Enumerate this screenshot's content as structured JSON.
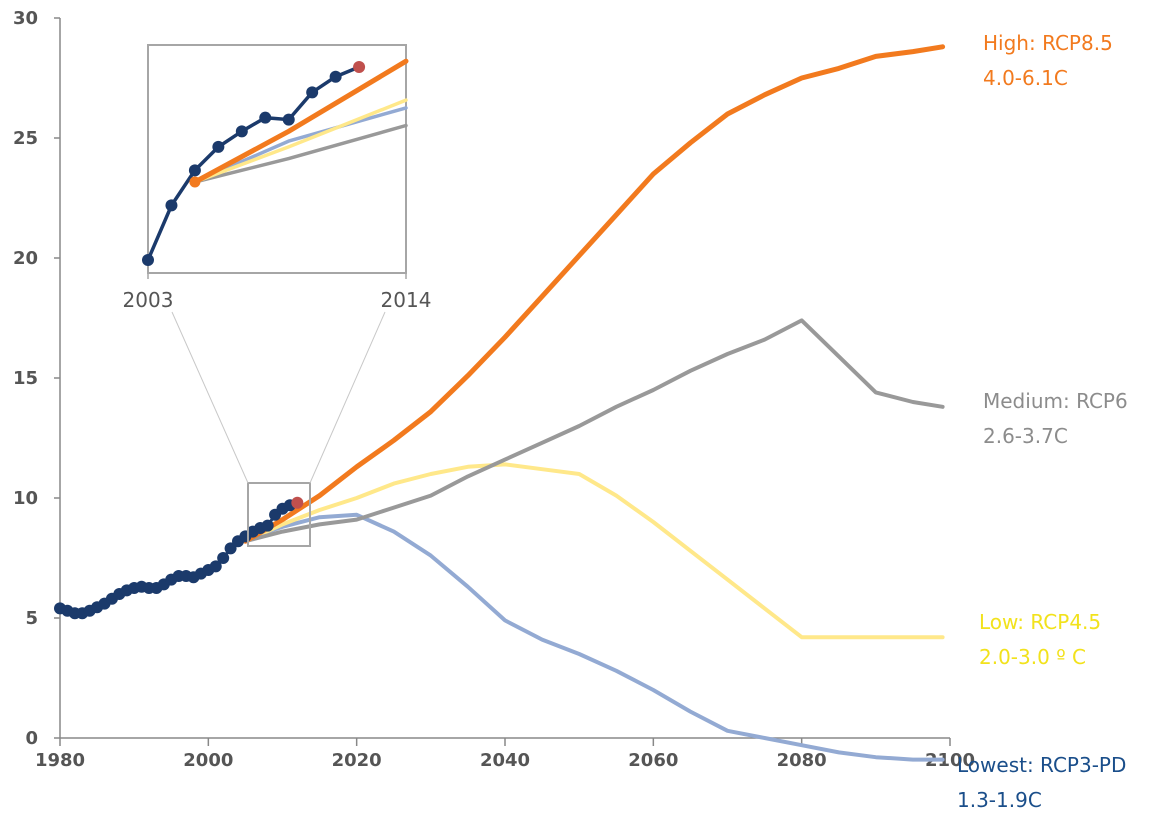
{
  "chart_data": {
    "type": "line",
    "title": "",
    "xlabel": "",
    "ylabel": "",
    "xlim": [
      1980,
      2100
    ],
    "ylim": [
      0,
      30
    ],
    "x_ticks": [
      "1980",
      "2000",
      "2020",
      "2040",
      "2060",
      "2080",
      "2100"
    ],
    "y_ticks": [
      "0",
      "5",
      "10",
      "15",
      "20",
      "25",
      "30"
    ],
    "grid": false,
    "legend": "labels at right end of each line",
    "colors": {
      "observed": "#1b3a6b",
      "latest": "#c0504d",
      "high": "#f27a1e",
      "medium": "#999999",
      "low": "#ffe88a",
      "lowest": "#93aad3",
      "axis": "#888888",
      "text": "#555555"
    },
    "observed": {
      "x": [
        1980,
        1981,
        1982,
        1983,
        1984,
        1985,
        1986,
        1987,
        1988,
        1989,
        1990,
        1991,
        1992,
        1993,
        1994,
        1995,
        1996,
        1997,
        1998,
        1999,
        2000,
        2001,
        2002,
        2003,
        2004,
        2005,
        2006,
        2007,
        2008,
        2009,
        2010,
        2011
      ],
      "y": [
        5.4,
        5.3,
        5.2,
        5.2,
        5.3,
        5.45,
        5.6,
        5.8,
        6.0,
        6.15,
        6.25,
        6.3,
        6.25,
        6.25,
        6.4,
        6.6,
        6.75,
        6.75,
        6.7,
        6.85,
        7.0,
        7.15,
        7.5,
        7.9,
        8.2,
        8.4,
        8.6,
        8.75,
        8.85,
        9.3,
        9.55,
        9.7
      ]
    },
    "latest": {
      "x": 2012,
      "y": 9.8
    },
    "series": [
      {
        "name": "High: RCP8.5",
        "range": "4.0-6.1C",
        "key": "high",
        "x": [
          2005,
          2010,
          2015,
          2020,
          2025,
          2030,
          2035,
          2040,
          2045,
          2050,
          2055,
          2060,
          2065,
          2070,
          2075,
          2080,
          2085,
          2090,
          2095,
          2099
        ],
        "y": [
          8.2,
          9.1,
          10.1,
          11.3,
          12.4,
          13.6,
          15.1,
          16.7,
          18.4,
          20.1,
          21.8,
          23.5,
          24.8,
          26.0,
          26.8,
          27.5,
          27.9,
          28.4,
          28.6,
          28.8
        ]
      },
      {
        "name": "Medium: RCP6",
        "range": "2.6-3.7C",
        "key": "medium",
        "x": [
          2005,
          2010,
          2015,
          2020,
          2025,
          2030,
          2035,
          2040,
          2045,
          2050,
          2055,
          2060,
          2065,
          2070,
          2075,
          2080,
          2085,
          2090,
          2095,
          2099
        ],
        "y": [
          8.2,
          8.6,
          8.9,
          9.1,
          9.6,
          10.1,
          10.9,
          11.6,
          12.3,
          13.0,
          13.8,
          14.5,
          15.3,
          16.0,
          16.6,
          17.4,
          15.9,
          14.4,
          14.0,
          13.8
        ]
      },
      {
        "name": "Low: RCP4.5",
        "range": "2.0-3.0 º C",
        "key": "low",
        "x": [
          2005,
          2010,
          2015,
          2020,
          2025,
          2030,
          2035,
          2040,
          2045,
          2050,
          2055,
          2060,
          2065,
          2070,
          2075,
          2080,
          2085,
          2090,
          2095,
          2099
        ],
        "y": [
          8.2,
          8.9,
          9.5,
          10.0,
          10.6,
          11.0,
          11.3,
          11.4,
          11.2,
          11.0,
          10.1,
          9.0,
          7.8,
          6.6,
          5.4,
          4.2,
          4.2,
          4.2,
          4.2,
          4.2
        ]
      },
      {
        "name": "Lowest: RCP3-PD",
        "range": "1.3-1.9C",
        "key": "lowest",
        "x": [
          2005,
          2010,
          2015,
          2020,
          2025,
          2030,
          2035,
          2040,
          2045,
          2050,
          2055,
          2060,
          2065,
          2070,
          2075,
          2080,
          2085,
          2090,
          2095,
          2099
        ],
        "y": [
          8.3,
          8.8,
          9.2,
          9.3,
          8.6,
          7.6,
          6.3,
          4.9,
          4.1,
          3.5,
          2.8,
          2.0,
          1.1,
          0.3,
          0.0,
          -0.3,
          -0.6,
          -0.8,
          -0.9,
          -0.9
        ]
      }
    ],
    "inset": {
      "x_labels": [
        "2003",
        "2014"
      ],
      "x_range": [
        2003,
        2014
      ],
      "observed": {
        "x": [
          2003,
          2004,
          2005,
          2006,
          2007,
          2008,
          2009,
          2010,
          2011,
          2012
        ],
        "y": [
          0.0,
          0.28,
          0.46,
          0.58,
          0.66,
          0.73,
          0.72,
          0.86,
          0.94,
          0.99
        ]
      },
      "latest": {
        "x": 2012,
        "y": 0.99
      },
      "high": {
        "x": [
          2005,
          2009,
          2014
        ],
        "y": [
          0.4,
          0.66,
          1.02
        ]
      },
      "lowest": {
        "x": [
          2005,
          2009,
          2014
        ],
        "y": [
          0.4,
          0.61,
          0.78
        ]
      },
      "low": {
        "x": [
          2005,
          2009,
          2014
        ],
        "y": [
          0.4,
          0.58,
          0.82
        ]
      },
      "medium": {
        "x": [
          2005,
          2009,
          2014
        ],
        "y": [
          0.4,
          0.52,
          0.69
        ]
      }
    }
  }
}
